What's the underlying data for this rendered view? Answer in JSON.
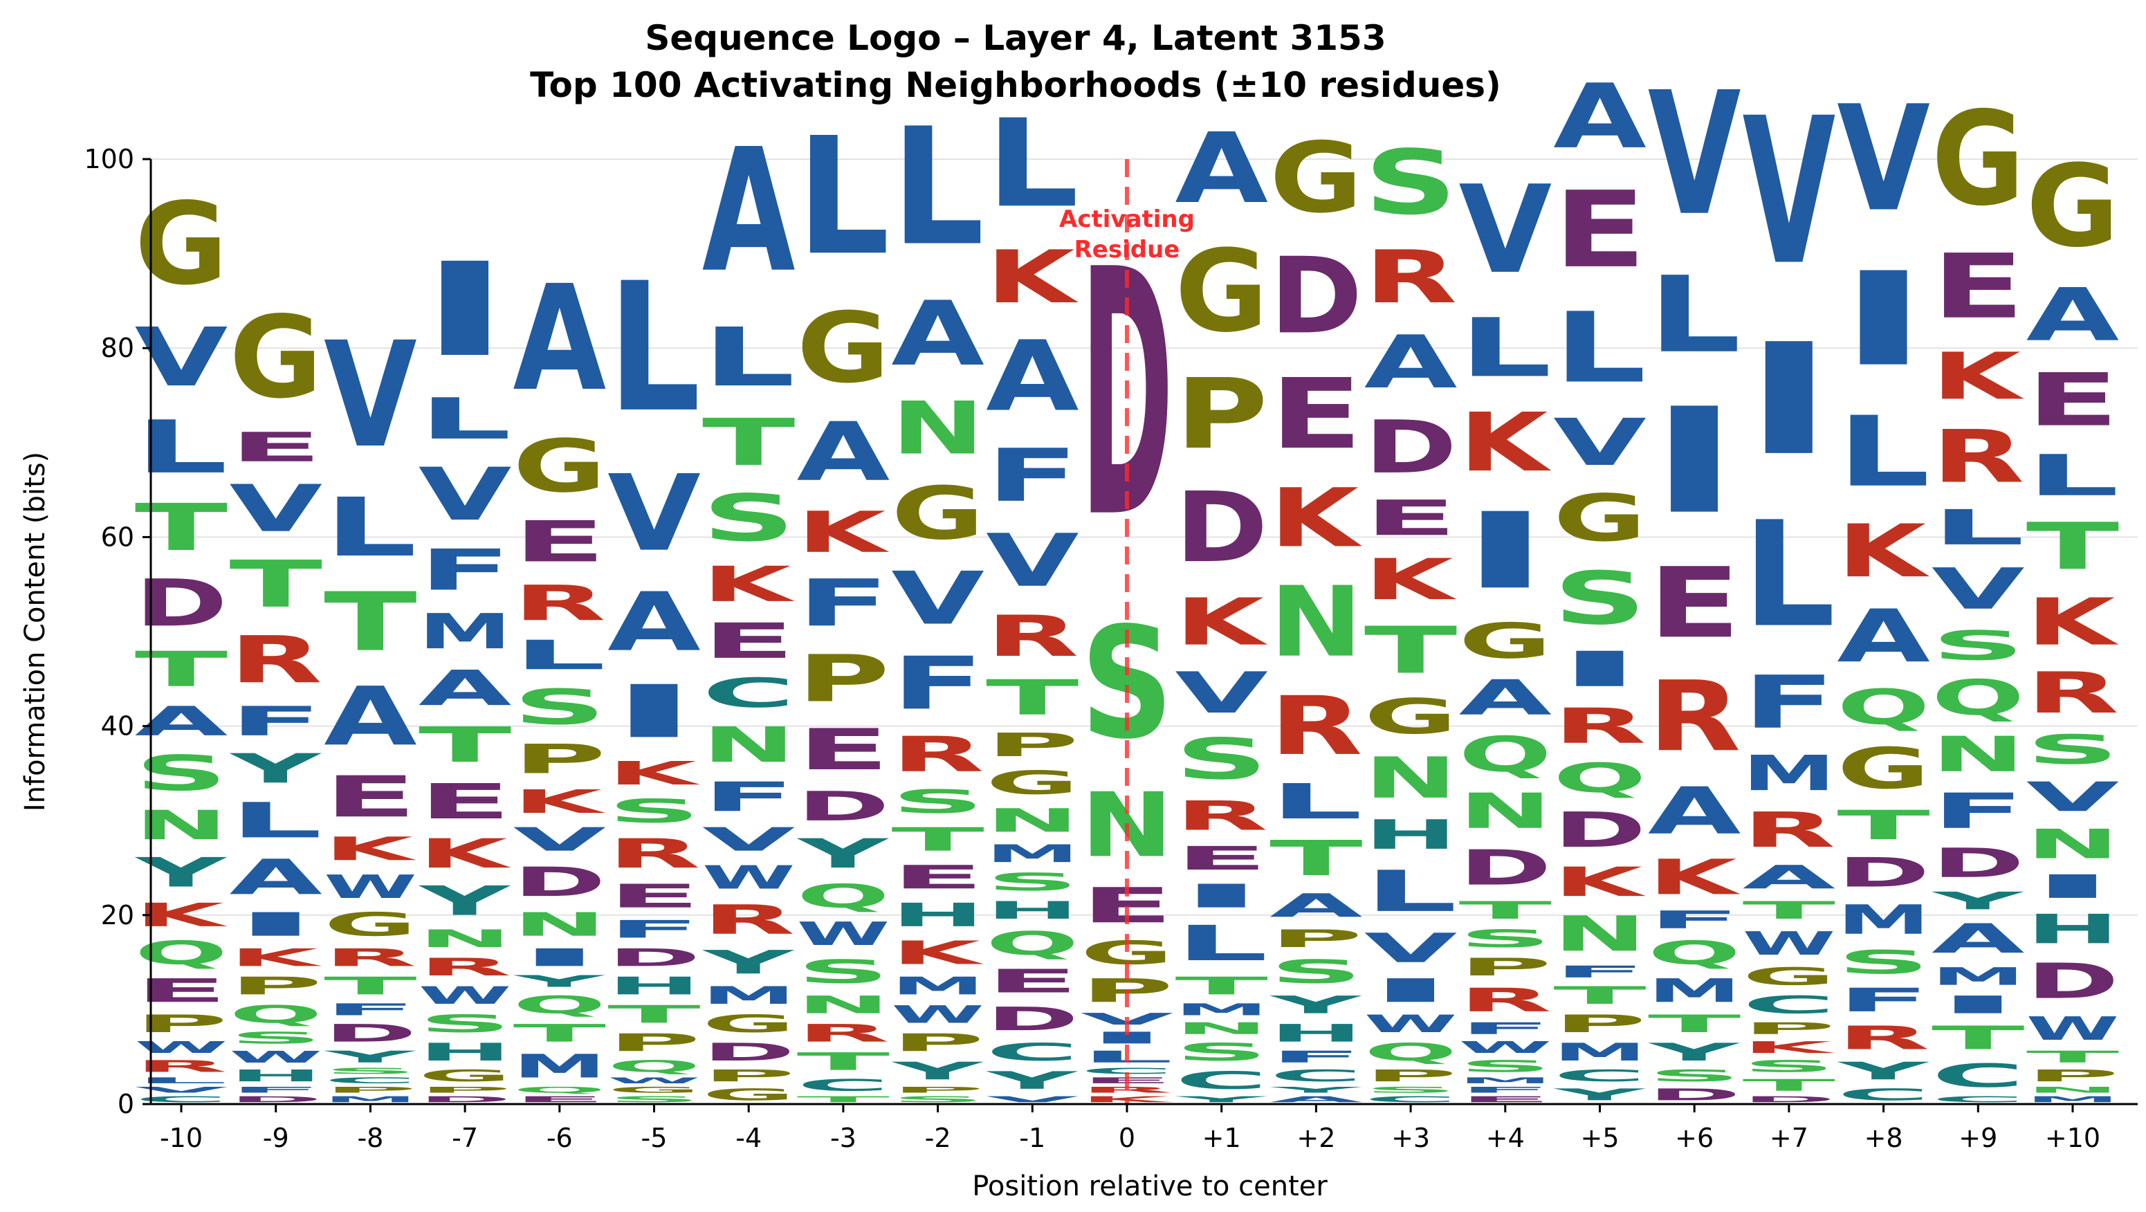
{
  "chart_data": {
    "type": "sequence-logo",
    "title_line1": "Sequence Logo – Layer 4, Latent 3153",
    "title_line2": "Top 100 Activating Neighborhoods (±10 residues)",
    "xlabel": "Position relative to center",
    "ylabel": "Information Content (bits)",
    "ylim": [
      0,
      100
    ],
    "yticks": [
      "0",
      "20",
      "40",
      "60",
      "80",
      "100"
    ],
    "positions": [
      "-10",
      "-9",
      "-8",
      "-7",
      "-6",
      "-5",
      "-4",
      "-3",
      "-2",
      "-1",
      "0",
      "+1",
      "+2",
      "+3",
      "+4",
      "+5",
      "+6",
      "+7",
      "+8",
      "+9",
      "+10"
    ],
    "activating_label_line1": "Activating",
    "activating_label_line2": "Residue",
    "grid": "horizontal",
    "colors": {
      "A": "#215ba1",
      "V": "#215ba1",
      "L": "#215ba1",
      "I": "#215ba1",
      "M": "#215ba1",
      "F": "#215ba1",
      "W": "#215ba1",
      "G": "#77750a",
      "P": "#77750a",
      "S": "#3db84a",
      "T": "#3db84a",
      "N": "#3db84a",
      "Q": "#3db84a",
      "Y": "#17797a",
      "H": "#17797a",
      "C": "#17797a",
      "D": "#6b2a6c",
      "E": "#6b2a6c",
      "K": "#c0321f",
      "R": "#c0321f"
    },
    "columns": [
      [
        [
          "C",
          1
        ],
        [
          "V",
          1
        ],
        [
          "L",
          1
        ],
        [
          "R",
          2
        ],
        [
          "W",
          2
        ],
        [
          "P",
          3
        ],
        [
          "E",
          4
        ],
        [
          "Q",
          4
        ],
        [
          "K",
          4
        ],
        [
          "Y",
          5
        ],
        [
          "N",
          5
        ],
        [
          "S",
          6
        ],
        [
          "A",
          5
        ],
        [
          "T",
          6
        ],
        [
          "D",
          8
        ],
        [
          "T",
          8
        ],
        [
          "L",
          9
        ],
        [
          "V",
          10
        ],
        [
          "G",
          14
        ]
      ],
      [
        [
          "D",
          1
        ],
        [
          "F",
          1
        ],
        [
          "H",
          2
        ],
        [
          "W",
          2
        ],
        [
          "S",
          2
        ],
        [
          "Q",
          3
        ],
        [
          "P",
          3
        ],
        [
          "K",
          3
        ],
        [
          "I",
          4
        ],
        [
          "A",
          6
        ],
        [
          "L",
          6
        ],
        [
          "Y",
          5
        ],
        [
          "F",
          5
        ],
        [
          "R",
          8
        ],
        [
          "T",
          8
        ],
        [
          "V",
          8
        ],
        [
          "E",
          5
        ],
        [
          "G",
          14
        ]
      ],
      [
        [
          "M",
          1
        ],
        [
          "P",
          1
        ],
        [
          "C",
          1
        ],
        [
          "S",
          1
        ],
        [
          "Y",
          2
        ],
        [
          "D",
          3
        ],
        [
          "F",
          2
        ],
        [
          "T",
          3
        ],
        [
          "R",
          3
        ],
        [
          "G",
          4
        ],
        [
          "W",
          4
        ],
        [
          "K",
          4
        ],
        [
          "E",
          7
        ],
        [
          "A",
          10
        ],
        [
          "T",
          10
        ],
        [
          "L",
          10
        ],
        [
          "V",
          18
        ]
      ],
      [
        [
          "D",
          1
        ],
        [
          "P",
          1
        ],
        [
          "G",
          2
        ],
        [
          "H",
          3
        ],
        [
          "S",
          3
        ],
        [
          "W",
          3
        ],
        [
          "R",
          3
        ],
        [
          "N",
          3
        ],
        [
          "Y",
          5
        ],
        [
          "K",
          5
        ],
        [
          "E",
          6
        ],
        [
          "T",
          6
        ],
        [
          "A",
          6
        ],
        [
          "M",
          6
        ],
        [
          "F",
          7
        ],
        [
          "V",
          9
        ],
        [
          "L",
          7
        ],
        [
          "I",
          16
        ]
      ],
      [
        [
          "E",
          1
        ],
        [
          "Q",
          1
        ],
        [
          "M",
          4
        ],
        [
          "T",
          3
        ],
        [
          "Q",
          3
        ],
        [
          "Y",
          2
        ],
        [
          "I",
          3
        ],
        [
          "N",
          4
        ],
        [
          "D",
          5
        ],
        [
          "V",
          4
        ],
        [
          "K",
          4
        ],
        [
          "P",
          5
        ],
        [
          "S",
          6
        ],
        [
          "L",
          5
        ],
        [
          "R",
          6
        ],
        [
          "E",
          7
        ],
        [
          "G",
          9
        ],
        [
          "A",
          18
        ]
      ],
      [
        [
          "S",
          1
        ],
        [
          "G",
          1
        ],
        [
          "W",
          1
        ],
        [
          "Q",
          2
        ],
        [
          "P",
          3
        ],
        [
          "T",
          3
        ],
        [
          "H",
          3
        ],
        [
          "D",
          3
        ],
        [
          "F",
          3
        ],
        [
          "E",
          4
        ],
        [
          "R",
          5
        ],
        [
          "S",
          4
        ],
        [
          "K",
          4
        ],
        [
          "I",
          9
        ],
        [
          "A",
          10
        ],
        [
          "V",
          13
        ],
        [
          "L",
          22
        ]
      ],
      [
        [
          "G",
          2
        ],
        [
          "P",
          2
        ],
        [
          "D",
          3
        ],
        [
          "G",
          3
        ],
        [
          "M",
          3
        ],
        [
          "Y",
          4
        ],
        [
          "R",
          5
        ],
        [
          "W",
          4
        ],
        [
          "V",
          4
        ],
        [
          "F",
          5
        ],
        [
          "N",
          6
        ],
        [
          "C",
          5
        ],
        [
          "E",
          6
        ],
        [
          "K",
          6
        ],
        [
          "S",
          8
        ],
        [
          "T",
          8
        ],
        [
          "L",
          10
        ],
        [
          "A",
          21
        ]
      ],
      [
        [
          "T",
          1
        ],
        [
          "C",
          2
        ],
        [
          "T",
          3
        ],
        [
          "R",
          3
        ],
        [
          "N",
          3
        ],
        [
          "S",
          4
        ],
        [
          "W",
          4
        ],
        [
          "Q",
          4
        ],
        [
          "Y",
          5
        ],
        [
          "D",
          5
        ],
        [
          "E",
          7
        ],
        [
          "P",
          8
        ],
        [
          "F",
          8
        ],
        [
          "K",
          7
        ],
        [
          "A",
          10
        ],
        [
          "G",
          12
        ],
        [
          "L",
          20
        ]
      ],
      [
        [
          "S",
          1
        ],
        [
          "P",
          1
        ],
        [
          "Y",
          3
        ],
        [
          "P",
          3
        ],
        [
          "W",
          3
        ],
        [
          "M",
          3
        ],
        [
          "K",
          4
        ],
        [
          "H",
          4
        ],
        [
          "E",
          4
        ],
        [
          "T",
          4
        ],
        [
          "S",
          4
        ],
        [
          "R",
          6
        ],
        [
          "F",
          9
        ],
        [
          "V",
          9
        ],
        [
          "G",
          9
        ],
        [
          "N",
          9
        ],
        [
          "A",
          11
        ],
        [
          "L",
          20
        ]
      ],
      [
        [
          "V",
          1
        ],
        [
          "Y",
          3
        ],
        [
          "C",
          3
        ],
        [
          "D",
          4
        ],
        [
          "E",
          4
        ],
        [
          "Q",
          4
        ],
        [
          "H",
          3
        ],
        [
          "S",
          3
        ],
        [
          "M",
          3
        ],
        [
          "N",
          4
        ],
        [
          "G",
          4
        ],
        [
          "P",
          4
        ],
        [
          "T",
          6
        ],
        [
          "R",
          7
        ],
        [
          "V",
          9
        ],
        [
          "F",
          9
        ],
        [
          "A",
          12
        ],
        [
          "K",
          9
        ],
        [
          "L",
          15
        ]
      ],
      [
        [
          "K",
          1
        ],
        [
          "R",
          1
        ],
        [
          "E",
          1
        ],
        [
          "C",
          1
        ],
        [
          "L",
          2
        ],
        [
          "I",
          2
        ],
        [
          "V",
          2
        ],
        [
          "P",
          4
        ],
        [
          "G",
          4
        ],
        [
          "E",
          6
        ],
        [
          "N",
          11
        ],
        [
          "S",
          19
        ],
        [
          "D",
          42
        ]
      ],
      [
        [
          "Y",
          1
        ],
        [
          "C",
          3
        ],
        [
          "S",
          3
        ],
        [
          "N",
          2
        ],
        [
          "M",
          2
        ],
        [
          "T",
          3
        ],
        [
          "L",
          6
        ],
        [
          "I",
          4
        ],
        [
          "E",
          4
        ],
        [
          "R",
          5
        ],
        [
          "S",
          7
        ],
        [
          "V",
          7
        ],
        [
          "K",
          8
        ],
        [
          "D",
          12
        ],
        [
          "P",
          12
        ],
        [
          "G",
          14
        ],
        [
          "A",
          12
        ]
      ],
      [
        [
          "A",
          1
        ],
        [
          "Y",
          1
        ],
        [
          "C",
          2
        ],
        [
          "F",
          2
        ],
        [
          "H",
          3
        ],
        [
          "Y",
          3
        ],
        [
          "S",
          4
        ],
        [
          "P",
          3
        ],
        [
          "A",
          4
        ],
        [
          "T",
          6
        ],
        [
          "L",
          6
        ],
        [
          "R",
          10
        ],
        [
          "N",
          12
        ],
        [
          "K",
          10
        ],
        [
          "E",
          12
        ],
        [
          "D",
          13
        ],
        [
          "G",
          12
        ]
      ],
      [
        [
          "C",
          1
        ],
        [
          "S",
          1
        ],
        [
          "P",
          2
        ],
        [
          "Q",
          3
        ],
        [
          "W",
          3
        ],
        [
          "I",
          4
        ],
        [
          "V",
          5
        ],
        [
          "L",
          7
        ],
        [
          "H",
          5
        ],
        [
          "N",
          7
        ],
        [
          "G",
          6
        ],
        [
          "T",
          8
        ],
        [
          "K",
          7
        ],
        [
          "E",
          6
        ],
        [
          "D",
          9
        ],
        [
          "A",
          9
        ],
        [
          "R",
          9
        ],
        [
          "S",
          11
        ]
      ],
      [
        [
          "E",
          1
        ],
        [
          "F",
          1
        ],
        [
          "M",
          1
        ],
        [
          "S",
          2
        ],
        [
          "W",
          2
        ],
        [
          "F",
          2
        ],
        [
          "R",
          4
        ],
        [
          "P",
          3
        ],
        [
          "S",
          3
        ],
        [
          "T",
          3
        ],
        [
          "D",
          6
        ],
        [
          "N",
          6
        ],
        [
          "Q",
          6
        ],
        [
          "A",
          6
        ],
        [
          "G",
          6
        ],
        [
          "I",
          13
        ],
        [
          "K",
          10
        ],
        [
          "L",
          10
        ],
        [
          "V",
          15
        ]
      ],
      [
        [
          "Y",
          2
        ],
        [
          "C",
          2
        ],
        [
          "M",
          3
        ],
        [
          "P",
          3
        ],
        [
          "T",
          3
        ],
        [
          "F",
          2
        ],
        [
          "N",
          6
        ],
        [
          "K",
          5
        ],
        [
          "D",
          6
        ],
        [
          "Q",
          5
        ],
        [
          "R",
          6
        ],
        [
          "I",
          6
        ],
        [
          "S",
          9
        ],
        [
          "G",
          8
        ],
        [
          "V",
          8
        ],
        [
          "L",
          12
        ],
        [
          "E",
          13
        ],
        [
          "A",
          11
        ]
      ],
      [
        [
          "D",
          2
        ],
        [
          "S",
          2
        ],
        [
          "Y",
          3
        ],
        [
          "T",
          3
        ],
        [
          "M",
          4
        ],
        [
          "Q",
          4
        ],
        [
          "F",
          3
        ],
        [
          "K",
          6
        ],
        [
          "A",
          8
        ],
        [
          "R",
          12
        ],
        [
          "E",
          12
        ],
        [
          "I",
          18
        ],
        [
          "L",
          13
        ],
        [
          "V",
          21
        ]
      ],
      [
        [
          "D",
          1
        ],
        [
          "T",
          2
        ],
        [
          "S",
          2
        ],
        [
          "K",
          2
        ],
        [
          "P",
          2
        ],
        [
          "C",
          3
        ],
        [
          "G",
          3
        ],
        [
          "W",
          4
        ],
        [
          "T",
          3
        ],
        [
          "A",
          4
        ],
        [
          "R",
          6
        ],
        [
          "M",
          6
        ],
        [
          "F",
          9
        ],
        [
          "L",
          18
        ],
        [
          "I",
          19
        ],
        [
          "V",
          25
        ]
      ],
      [
        [
          "C",
          2
        ],
        [
          "Y",
          3
        ],
        [
          "R",
          4
        ],
        [
          "F",
          4
        ],
        [
          "S",
          4
        ],
        [
          "M",
          5
        ],
        [
          "D",
          5
        ],
        [
          "T",
          5
        ],
        [
          "G",
          7
        ],
        [
          "Q",
          6
        ],
        [
          "A",
          9
        ],
        [
          "K",
          9
        ],
        [
          "L",
          12
        ],
        [
          "I",
          16
        ],
        [
          "V",
          18
        ]
      ],
      [
        [
          "C",
          1
        ],
        [
          "C",
          4
        ],
        [
          "T",
          4
        ],
        [
          "I",
          3
        ],
        [
          "M",
          3
        ],
        [
          "A",
          5
        ],
        [
          "Y",
          3
        ],
        [
          "D",
          5
        ],
        [
          "F",
          6
        ],
        [
          "N",
          6
        ],
        [
          "Q",
          6
        ],
        [
          "S",
          5
        ],
        [
          "V",
          7
        ],
        [
          "L",
          6
        ],
        [
          "R",
          9
        ],
        [
          "K",
          8
        ],
        [
          "E",
          11
        ],
        [
          "G",
          16
        ]
      ],
      [
        [
          "M",
          1
        ],
        [
          "N",
          1
        ],
        [
          "P",
          2
        ],
        [
          "T",
          2
        ],
        [
          "W",
          4
        ],
        [
          "D",
          6
        ],
        [
          "H",
          5
        ],
        [
          "I",
          4
        ],
        [
          "N",
          5
        ],
        [
          "V",
          5
        ],
        [
          "S",
          5
        ],
        [
          "R",
          7
        ],
        [
          "K",
          8
        ],
        [
          "T",
          8
        ],
        [
          "L",
          7
        ],
        [
          "E",
          9
        ],
        [
          "A",
          9
        ],
        [
          "G",
          14
        ]
      ]
    ]
  }
}
